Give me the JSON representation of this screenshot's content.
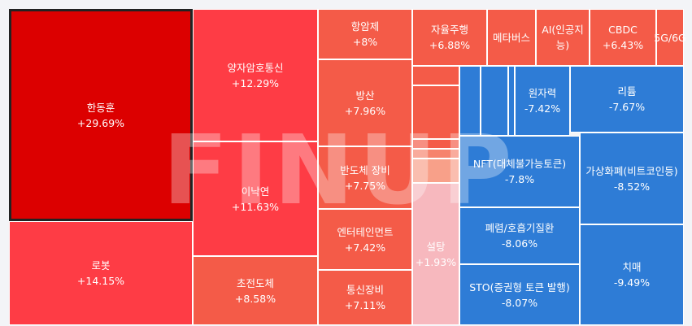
{
  "watermark": "FINUP",
  "tiles": [
    {
      "id": "t1",
      "name": "한동훈",
      "pct": "+29.69%",
      "color": "#dc0000",
      "selected": true
    },
    {
      "id": "t2",
      "name": "로봇",
      "pct": "+14.15%",
      "color": "#fe3c45"
    },
    {
      "id": "t3",
      "name": "양자암호통신",
      "pct": "+12.29%",
      "color": "#fe3c45"
    },
    {
      "id": "t4",
      "name": "이낙연",
      "pct": "+11.63%",
      "color": "#fe3c45"
    },
    {
      "id": "t5",
      "name": "초전도체",
      "pct": "+8.58%",
      "color": "#f45b48"
    },
    {
      "id": "t6",
      "name": "항암제",
      "pct": "+8%",
      "color": "#f45b48"
    },
    {
      "id": "t7",
      "name": "방산",
      "pct": "+7.96%",
      "color": "#f45b48"
    },
    {
      "id": "t8",
      "name": "반도체 장비",
      "pct": "+7.75%",
      "color": "#f45b48"
    },
    {
      "id": "t9",
      "name": "엔터테인먼트",
      "pct": "+7.42%",
      "color": "#f45b48"
    },
    {
      "id": "t10",
      "name": "통신장비",
      "pct": "+7.11%",
      "color": "#f45b48"
    },
    {
      "id": "t11",
      "name": "자율주행",
      "pct": "+6.88%",
      "color": "#f45b48"
    },
    {
      "id": "t12",
      "name": "메타버스",
      "pct": "",
      "color": "#f45b48"
    },
    {
      "id": "t13",
      "name": "AI(인공지능)",
      "pct": "",
      "color": "#f45b48"
    },
    {
      "id": "t14",
      "name": "CBDC",
      "pct": "+6.43%",
      "color": "#f45b48"
    },
    {
      "id": "t15",
      "name": "5G/6G",
      "pct": "",
      "color": "#f45b48"
    },
    {
      "id": "t16",
      "name": "",
      "pct": "",
      "color": "#f45b48"
    },
    {
      "id": "t17",
      "name": "",
      "pct": "",
      "color": "#f45b48"
    },
    {
      "id": "t18",
      "name": "",
      "pct": "",
      "color": "#f45b48"
    },
    {
      "id": "t19",
      "name": "",
      "pct": "",
      "color": "#f6836d"
    },
    {
      "id": "t20",
      "name": "",
      "pct": "",
      "color": "#f8a089"
    },
    {
      "id": "t21",
      "name": "설탕",
      "pct": "+1.93%",
      "color": "#f7b8be"
    },
    {
      "id": "t22",
      "name": "",
      "pct": "",
      "color": "#2e7cd6"
    },
    {
      "id": "t23",
      "name": "",
      "pct": "",
      "color": "#2e7cd6"
    },
    {
      "id": "t24",
      "name": "",
      "pct": "",
      "color": "#2e7cd6"
    },
    {
      "id": "t25",
      "name": "원자력",
      "pct": "-7.42%",
      "color": "#2e7cd6"
    },
    {
      "id": "t26",
      "name": "리튬",
      "pct": "-7.67%",
      "color": "#2e7cd6"
    },
    {
      "id": "t27",
      "name": "NFT(대체불가능토큰)",
      "pct": "-7.8%",
      "color": "#2e7cd6"
    },
    {
      "id": "t28",
      "name": "가상화폐(비트코인등)",
      "pct": "-8.52%",
      "color": "#2e7cd6"
    },
    {
      "id": "t29",
      "name": "폐렴/호흡기질환",
      "pct": "-8.06%",
      "color": "#2e7cd6"
    },
    {
      "id": "t30",
      "name": "치매",
      "pct": "-9.49%",
      "color": "#2e7cd6"
    },
    {
      "id": "t31",
      "name": "STO(증권형 토큰 발행)",
      "pct": "-8.07%",
      "color": "#2e7cd6"
    }
  ]
}
